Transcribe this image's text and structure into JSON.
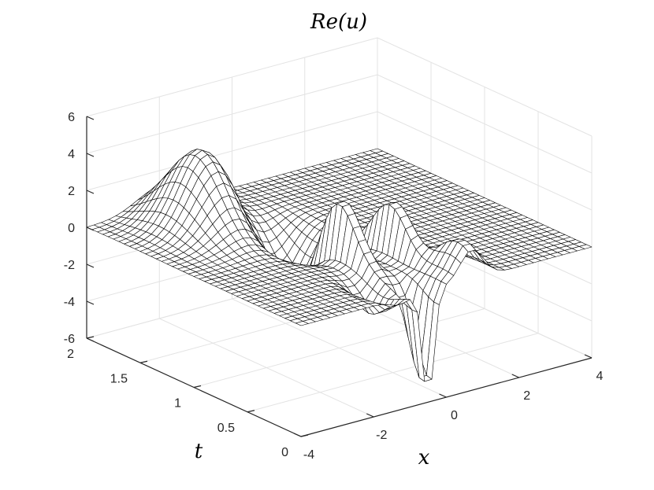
{
  "chart_data": {
    "type": "surface",
    "title": "Re(u)",
    "xlabel": "x",
    "ylabel": "t",
    "zlabel": "",
    "xlim": [
      -4,
      4
    ],
    "ylim": [
      0,
      2
    ],
    "zlim": [
      -6,
      6
    ],
    "x_ticks": [
      "-4",
      "-2",
      "0",
      "2",
      "4"
    ],
    "y_ticks": [
      "0",
      "0.5",
      "1",
      "1.5",
      "2"
    ],
    "z_ticks": [
      "-6",
      "-4",
      "-2",
      "0",
      "2",
      "4",
      "6"
    ],
    "grid": true,
    "colors": {
      "surface_face": "#ffffff",
      "mesh_line": "#000000",
      "grid": "#e3e3e3",
      "axis": "#262626"
    },
    "grid_resolution": {
      "x_samples": 41,
      "t_samples": 41
    },
    "features": [
      {
        "description": "positive hump",
        "x": -2.0,
        "t": 1.6,
        "value": 4.2
      },
      {
        "description": "negative trough",
        "x": -0.8,
        "t": 1.2,
        "value": -3.2
      },
      {
        "description": "sharp peak",
        "x": -0.7,
        "t": 0.75,
        "value": 4.4
      },
      {
        "description": "sharp peak",
        "x": 0.3,
        "t": 0.6,
        "value": 3.7
      },
      {
        "description": "sharp minimum",
        "x": -0.5,
        "t": 0.02,
        "value": -6.0
      },
      {
        "description": "secondary hump",
        "x": 0.7,
        "t": 0.1,
        "value": 1.9
      }
    ]
  }
}
